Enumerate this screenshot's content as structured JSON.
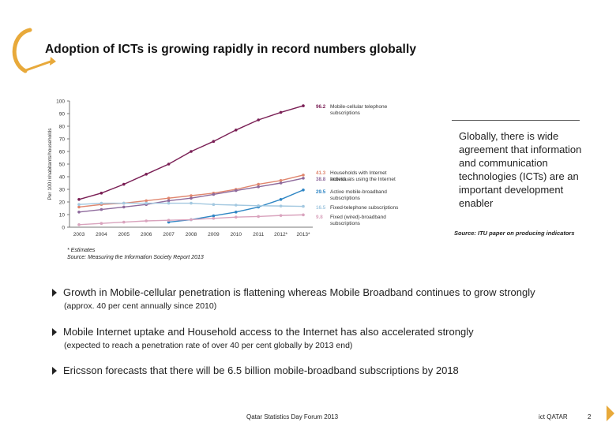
{
  "slide": {
    "title": "Adoption of ICTs is growing rapidly in record numbers globally",
    "side_text": "Globally, there is wide agreement that information and communication technologies (ICTs) are an important development enabler",
    "side_source": "Source: ITU paper on producing indicators",
    "note_estimate": "* Estimates",
    "note_source": "Source: Measuring the Information Society Report 2013",
    "bullets": [
      {
        "text": "Growth in Mobile-cellular penetration is flattening whereas Mobile Broadband continues to grow strongly",
        "sub": "(approx. 40 per cent annually since 2010)"
      },
      {
        "text": "Mobile Internet uptake and Household access to the Internet has also accelerated strongly",
        "sub": "(expected to reach a penetration rate of over 40 per cent globally by 2013 end)"
      },
      {
        "text": "Ericsson forecasts that there will be 6.5 billion mobile-broadband subscriptions by 2018",
        "sub": ""
      }
    ],
    "footer_center": "Qatar Statistics Day Forum 2013",
    "footer_right": "ict QATAR",
    "page_number": "2"
  },
  "colors": {
    "mobile": "#7a1f55",
    "households": "#e0866e",
    "individuals": "#8e6a9c",
    "broadband": "#2f86c4",
    "fixed_tel": "#a3c8e0",
    "fixed_bb": "#d9a3bd",
    "logo": "#e8a93a"
  },
  "chart_data": {
    "type": "line",
    "ylabel": "Per 100 inhabitants/households",
    "ylim": [
      0,
      100
    ],
    "yticks": [
      "0",
      "10",
      "20",
      "30",
      "40",
      "50",
      "60",
      "70",
      "80",
      "90",
      "100"
    ],
    "categories": [
      "2003",
      "2004",
      "2005",
      "2006",
      "2007",
      "2008",
      "2009",
      "2010",
      "2011",
      "2012*",
      "2013*"
    ],
    "series": [
      {
        "name": "Mobile-cellular telephone subscriptions",
        "label_value": "96.2",
        "color": "#7a1f55",
        "values": [
          22,
          27,
          34,
          42,
          50,
          60,
          68,
          77,
          85,
          91,
          96.2
        ]
      },
      {
        "name": "Households with Internet access",
        "label_value": "41.3",
        "color": "#e0866e",
        "values": [
          16,
          18,
          19,
          21,
          23,
          25,
          27,
          30,
          34,
          37,
          41.3
        ]
      },
      {
        "name": "Individuals using the Internet",
        "label_value": "38.8",
        "color": "#8e6a9c",
        "values": [
          12,
          14,
          16,
          18,
          21,
          23,
          26,
          29,
          32,
          35,
          38.8
        ]
      },
      {
        "name": "Active mobile-broadband subscriptions",
        "label_value": "29.5",
        "color": "#2f86c4",
        "values": [
          null,
          null,
          null,
          null,
          4,
          6,
          9,
          12,
          16,
          22,
          29.5
        ]
      },
      {
        "name": "Fixed-telephone subscriptions",
        "label_value": "16.5",
        "color": "#a3c8e0",
        "values": [
          18,
          19,
          19,
          19,
          19,
          19,
          18,
          17.5,
          17,
          16.8,
          16.5
        ]
      },
      {
        "name": "Fixed (wired)-broadband subscriptions",
        "label_value": "9.8",
        "color": "#d9a3bd",
        "values": [
          2,
          3,
          4,
          5,
          5.5,
          6,
          7,
          8,
          8.5,
          9.3,
          9.8
        ]
      }
    ]
  }
}
